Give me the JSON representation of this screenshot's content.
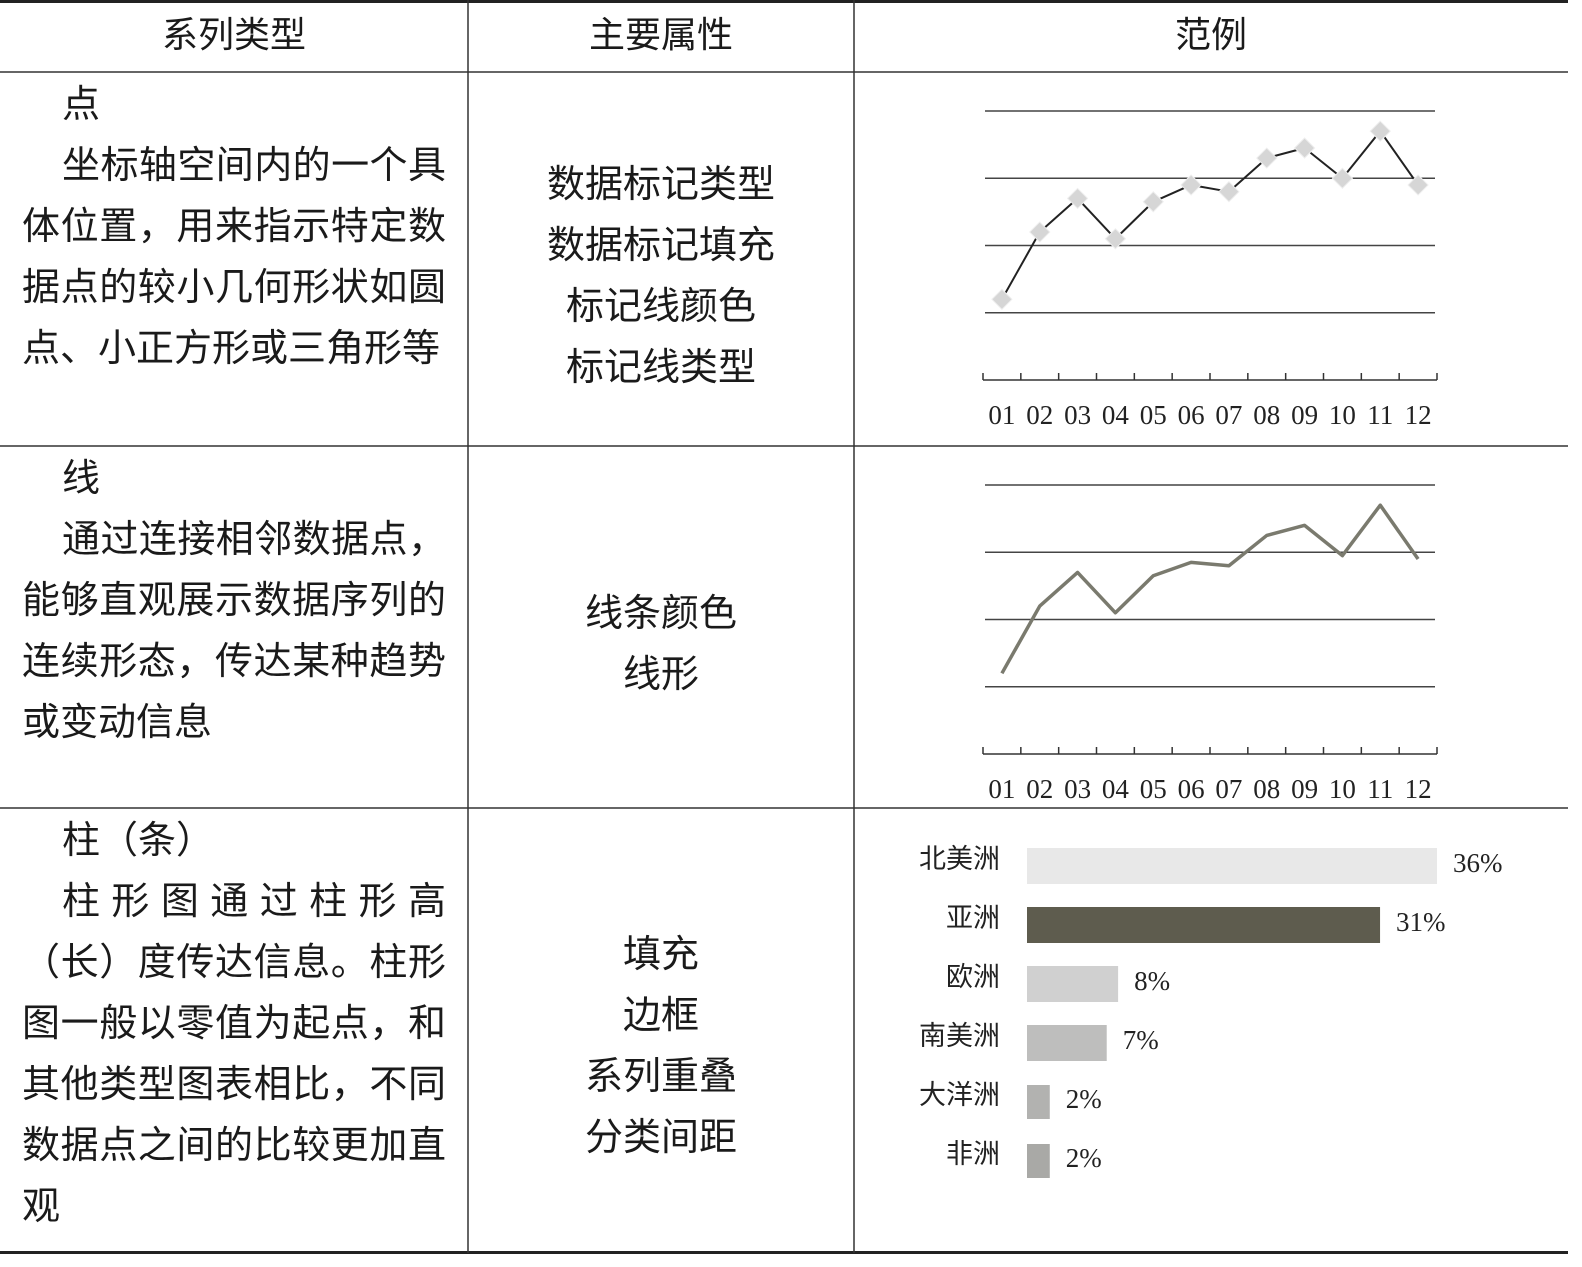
{
  "table": {
    "header": [
      "系列类型",
      "主要属性",
      "范例"
    ],
    "rows": [
      {
        "type": "点",
        "description": "坐标轴空间内的一个具体位置，用来指示特定数据点的较小几何形状如圆点、小正方形或三角形等",
        "properties": [
          "数据标记类型",
          "数据标记填充",
          "标记线颜色",
          "标记线类型"
        ],
        "chart_data": {
          "type": "line",
          "markers": "diamond",
          "color": "#222222",
          "marker_color": "#d6d6d6",
          "categories": [
            "01",
            "02",
            "03",
            "04",
            "05",
            "06",
            "07",
            "08",
            "09",
            "10",
            "11",
            "12"
          ],
          "values": [
            1.2,
            2.2,
            2.7,
            2.1,
            2.65,
            2.9,
            2.8,
            3.3,
            3.45,
            3.0,
            3.7,
            2.9
          ],
          "ylim": [
            0,
            4
          ],
          "gridlines": [
            1,
            2,
            3,
            4
          ]
        }
      },
      {
        "type": "线",
        "description": "通过连接相邻数据点，能够直观展示数据序列的连续形态，传达某种趋势或变动信息",
        "properties": [
          "线条颜色",
          "线形"
        ],
        "chart_data": {
          "type": "line",
          "color": "#7a7a6e",
          "categories": [
            "01",
            "02",
            "03",
            "04",
            "05",
            "06",
            "07",
            "08",
            "09",
            "10",
            "11",
            "12"
          ],
          "values": [
            1.2,
            2.2,
            2.7,
            2.1,
            2.65,
            2.85,
            2.8,
            3.25,
            3.4,
            2.95,
            3.7,
            2.9
          ],
          "ylim": [
            0,
            4
          ],
          "gridlines": [
            1,
            2,
            3,
            4
          ]
        }
      },
      {
        "type": "柱（条）",
        "description": "柱形图通过柱形高（长）度传达信息。柱形图一般以零值为起点，和其他类型图表相比，不同数据点之间的比较更加直观",
        "properties": [
          "填充",
          "边框",
          "系列重叠",
          "分类间距"
        ],
        "chart_data": {
          "type": "hbar",
          "categories": [
            "北美洲",
            "亚洲",
            "欧洲",
            "南美洲",
            "大洋洲",
            "非洲"
          ],
          "values": [
            36,
            31,
            8,
            7,
            2,
            2
          ],
          "value_labels": [
            "36%",
            "31%",
            "8%",
            "7%",
            "2%",
            "2%"
          ],
          "colors": [
            "#e8e8e8",
            "#5e5c4e",
            "#d0d0d0",
            "#bebebd",
            "#b2b2b0",
            "#a9a9a6"
          ],
          "xlim": [
            0,
            36
          ]
        }
      }
    ]
  }
}
